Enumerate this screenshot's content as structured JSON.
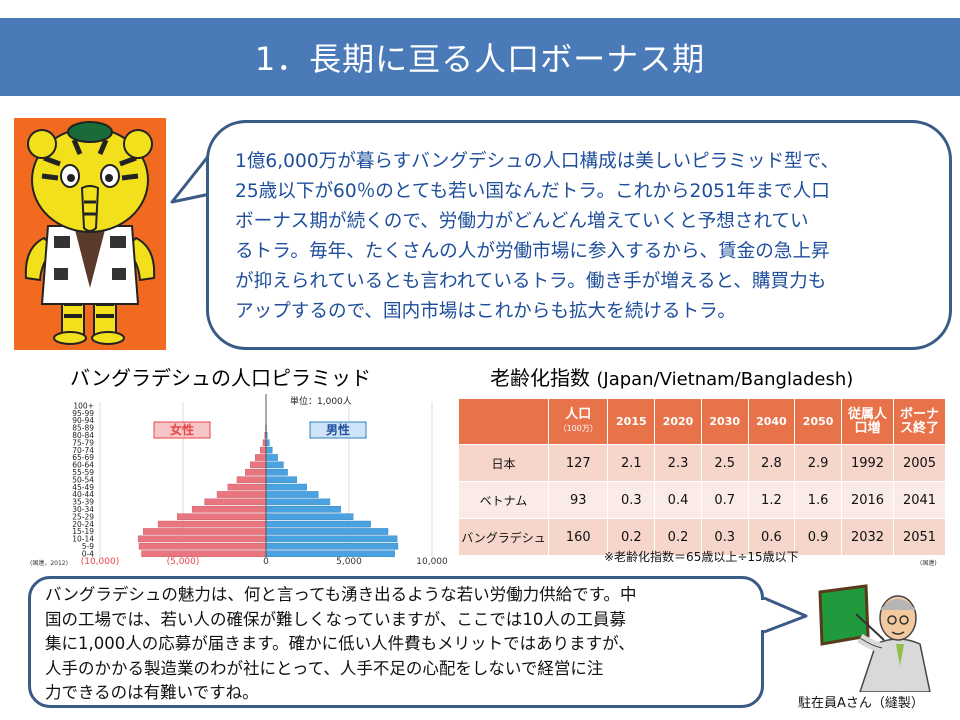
{
  "title": "1．長期に亘る人口ボーナス期",
  "bubble_top": {
    "lines": [
      "1億6,000万が暮らすバングデシュの人口構成は美しいピラミッド型で、",
      "25歳以下が60％のとても若い国なんだトラ。これから2051年まで人口",
      "ボーナス期が続くので、労働力がどんどん増えていくと予想されてい",
      "るトラ。毎年、たくさんの人が労働市場に参入するから、賃金の急上昇",
      "が抑えられているとも言われているトラ。働き手が増えると、購買力も",
      "アップするので、国内市場はこれからも拡大を続けるトラ。"
    ]
  },
  "pyramid": {
    "title": "バングラデシュの人口ピラミッド",
    "unit": "単位：1,000人",
    "female_label": "女性",
    "male_label": "男性",
    "source": "(国連，2012)",
    "age_groups": [
      "100+",
      "95-99",
      "90-94",
      "85-89",
      "80-84",
      "75-79",
      "70-74",
      "65-69",
      "60-64",
      "55-59",
      "50-54",
      "45-49",
      "40-44",
      "35-39",
      "30-34",
      "25-29",
      "20-24",
      "15-19",
      "10-14",
      "5-9",
      "0-4"
    ],
    "female": [
      0,
      0,
      10,
      30,
      80,
      180,
      350,
      650,
      950,
      1250,
      1750,
      2300,
      2950,
      3700,
      4450,
      5350,
      6500,
      7400,
      7700,
      7650,
      7500
    ],
    "male": [
      0,
      0,
      10,
      30,
      80,
      200,
      380,
      700,
      1050,
      1300,
      1850,
      2450,
      3150,
      3850,
      4500,
      5250,
      6300,
      7350,
      7900,
      7950,
      7750
    ],
    "x_ticks": [
      "(10,000)",
      "(5,000)",
      "0",
      "5,000",
      "10,000"
    ],
    "x_tick_colors": [
      "#e8454a",
      "#e8454a",
      "#333333",
      "#333333",
      "#333333"
    ],
    "female_color": "#e8757f",
    "male_color": "#4aa3e0"
  },
  "aging": {
    "title": "老齢化指数",
    "subtitle": "(Japan/Vietnam/Bangladesh)",
    "headers": [
      "",
      "人口",
      "2015",
      "2020",
      "2030",
      "2040",
      "2050",
      "従属人口増",
      "ボーナス終了"
    ],
    "pop_unit": "（100万）",
    "rows": [
      [
        "日本",
        "127",
        "2.1",
        "2.3",
        "2.5",
        "2.8",
        "2.9",
        "1992",
        "2005"
      ],
      [
        "ベトナム",
        "93",
        "0.3",
        "0.4",
        "0.7",
        "1.2",
        "1.6",
        "2016",
        "2041"
      ],
      [
        "バングラデシュ",
        "160",
        "0.2",
        "0.2",
        "0.3",
        "0.6",
        "0.9",
        "2032",
        "2051"
      ]
    ],
    "note": "※老齢化指数＝65歳以上÷15歳以下",
    "source": "(国連)"
  },
  "bubble_bottom": {
    "lines": [
      "バングラデシュの魅力は、何と言っても湧き出るような若い労働力供給です。中",
      "国の工場では、若い人の確保が難しくなっていますが、ここでは10人の工員募",
      "集に1,000人の応募が届きます。確かに低い人件費もメリットではありますが、",
      "人手のかかる製造業のわが社にとって、人手不足の心配をしないで経営に注",
      "力できるのは有難いですね。"
    ]
  },
  "person_caption": "駐在員Aさん（縫製）",
  "colors": {
    "title_bar": "#4a7ab8",
    "bubble_border": "#3a5b86",
    "bubble_text": "#1f4f9c",
    "table_header": "#e8724a",
    "mascot_bg": "#f26a1f"
  }
}
